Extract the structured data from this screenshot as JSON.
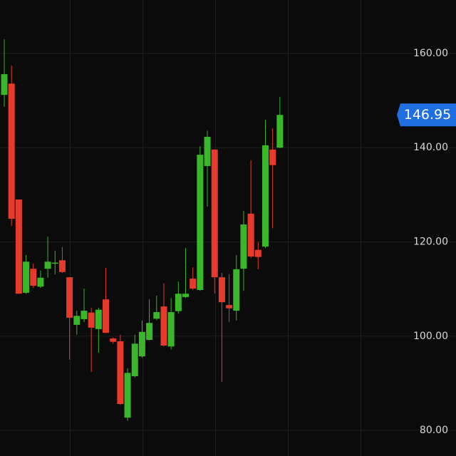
{
  "chart_data": {
    "type": "candlestick",
    "up_color": "#39b62a",
    "down_color": "#e53a2c",
    "last_price": 146.95,
    "last_price_color": "#1f6fe0",
    "grid": true,
    "ylim": [
      74.56,
      171.34
    ],
    "yticks": [
      {
        "value": 80,
        "label": "80.00"
      },
      {
        "value": 100,
        "label": "100.00"
      },
      {
        "value": 120,
        "label": "120.00"
      },
      {
        "value": 140,
        "label": "140.00"
      },
      {
        "value": 160,
        "label": "160.00"
      }
    ],
    "open": [
      151.2,
      153.6,
      129.0,
      109.2,
      114.3,
      110.5,
      114.3,
      115.4,
      116.1,
      112.5,
      102.4,
      103.6,
      105.0,
      101.5,
      107.8,
      99.5,
      98.9,
      82.7,
      91.5,
      95.7,
      99.2,
      103.7,
      106.3,
      97.8,
      105.3,
      108.3,
      112.2,
      109.8,
      136.1,
      139.6,
      112.5,
      106.6,
      105.4,
      114.3,
      126.0,
      118.3,
      119.0,
      139.6,
      140.0
    ],
    "high": [
      163.0,
      157.4,
      129.0,
      117.2,
      115.4,
      113.9,
      121.1,
      118.1,
      118.9,
      112.5,
      105.4,
      110.1,
      106.0,
      106.0,
      114.5,
      99.7,
      100.3,
      93.2,
      100.3,
      103.3,
      107.8,
      108.6,
      111.2,
      108.1,
      111.6,
      118.7,
      114.6,
      140.3,
      143.6,
      139.6,
      113.4,
      113.1,
      117.2,
      126.6,
      137.3,
      120.0,
      145.9,
      144.1,
      150.8
    ],
    "low": [
      148.7,
      123.4,
      109.0,
      109.0,
      110.2,
      110.2,
      112.4,
      113.1,
      113.4,
      95.0,
      100.3,
      103.0,
      92.4,
      96.5,
      100.6,
      98.4,
      85.4,
      82.0,
      91.2,
      95.4,
      99.1,
      103.4,
      97.8,
      97.2,
      104.8,
      108.1,
      109.8,
      109.6,
      127.5,
      109.0,
      90.3,
      103.0,
      103.3,
      109.6,
      116.6,
      114.2,
      118.7,
      122.9,
      139.9
    ],
    "close": [
      155.6,
      124.9,
      109.0,
      115.8,
      110.7,
      112.4,
      115.8,
      115.6,
      113.6,
      103.9,
      104.3,
      105.4,
      101.8,
      105.6,
      100.7,
      98.8,
      85.6,
      92.2,
      98.4,
      100.9,
      102.8,
      105.1,
      98.0,
      105.1,
      109.0,
      109.0,
      110.1,
      138.5,
      142.3,
      112.5,
      107.2,
      105.9,
      114.2,
      123.7,
      116.9,
      116.8,
      140.5,
      136.3,
      146.95
    ]
  }
}
